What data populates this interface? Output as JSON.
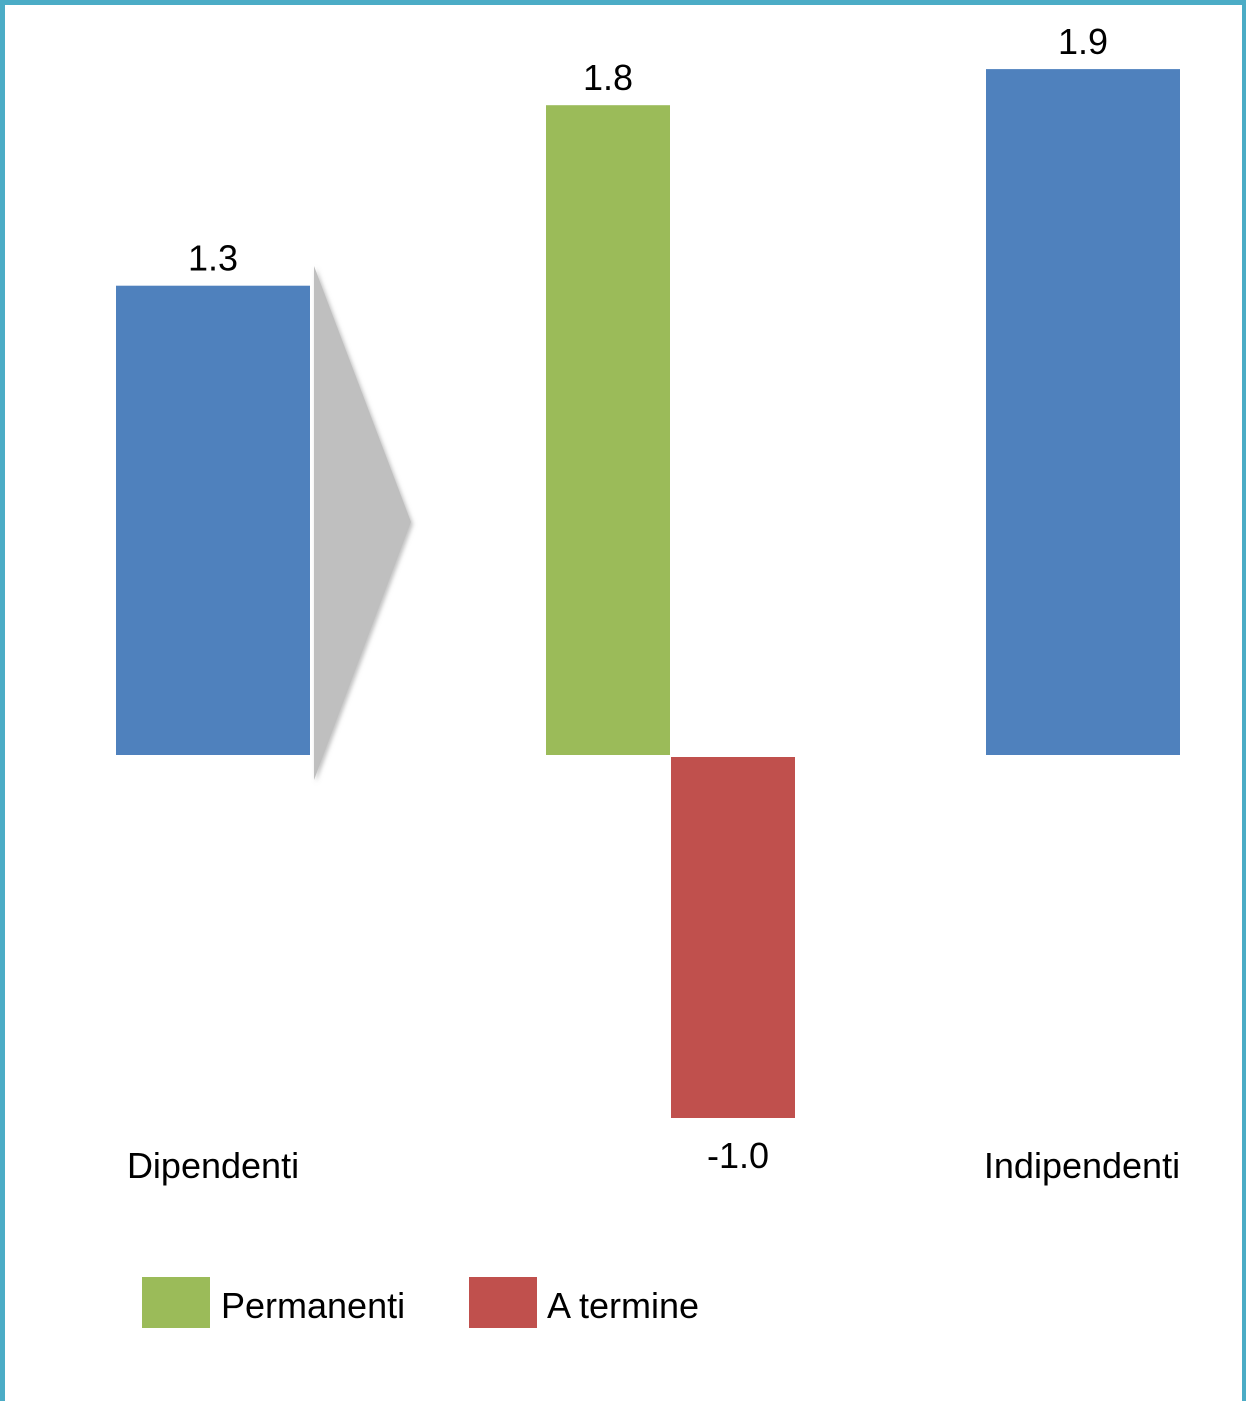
{
  "chart_data": {
    "type": "bar",
    "categories": [
      "Dipendenti",
      "Indipendenti"
    ],
    "series": [
      {
        "name": "",
        "category": "Dipendenti",
        "value": 1.3,
        "color": "#4f81bd"
      },
      {
        "name": "Permanenti",
        "category": "",
        "value": 1.8,
        "color": "#9bbb59"
      },
      {
        "name": "A termine",
        "category": "",
        "value": -1.0,
        "color": "#c0504d"
      },
      {
        "name": "",
        "category": "Indipendenti",
        "value": 1.9,
        "color": "#4f81bd"
      }
    ],
    "data_labels": [
      "1.3",
      "1.8",
      "-1.0",
      "1.9"
    ],
    "legend": {
      "placement": "bottom-left",
      "entries": [
        {
          "label": "Permanenti",
          "color": "#9bbb59"
        },
        {
          "label": "A termine",
          "color": "#c0504d"
        }
      ]
    },
    "arrow_color": "#bfbfbf",
    "border_color": "#4bacc6",
    "title": "",
    "xlabel": "",
    "ylabel": "",
    "ylim": [
      -1.0,
      1.9
    ]
  }
}
